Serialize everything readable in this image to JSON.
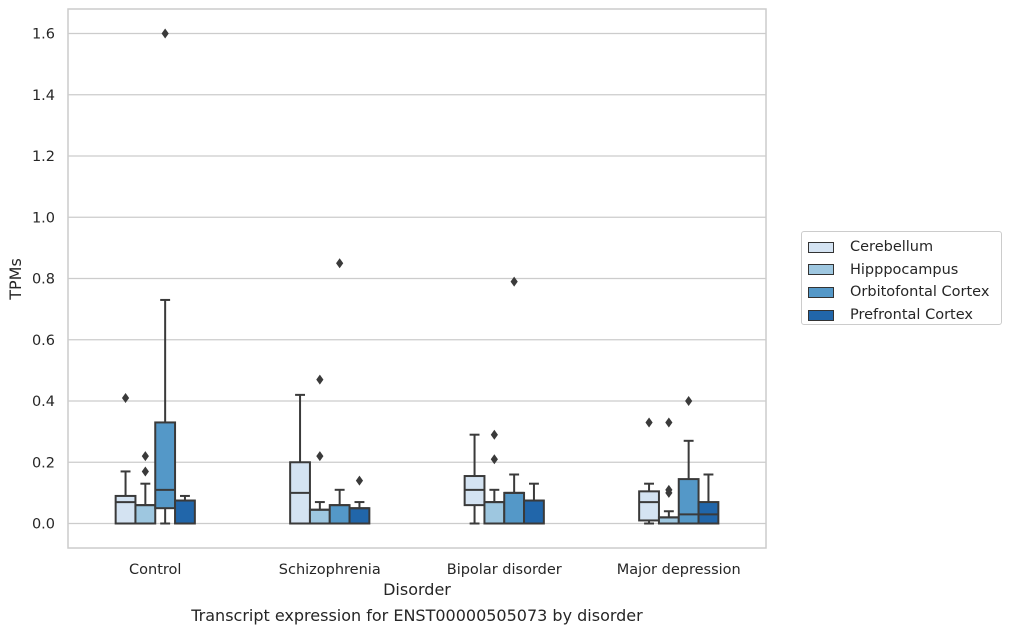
{
  "chart_data": {
    "type": "box",
    "title": "",
    "xlabel": "Disorder",
    "ylabel": "TPMs",
    "caption": "Transcript expression for ENST00000505073 by disorder",
    "ylim": [
      -0.08,
      1.68
    ],
    "yticks": [
      "0.0",
      "0.2",
      "0.4",
      "0.6",
      "0.8",
      "1.0",
      "1.2",
      "1.4",
      "1.6"
    ],
    "ytick_values": [
      0.0,
      0.2,
      0.4,
      0.6,
      0.8,
      1.0,
      1.2,
      1.4,
      1.6
    ],
    "grid": "horizontal",
    "legend_position": "right",
    "categories": [
      "Control",
      "Schizophrenia",
      "Bipolar disorder",
      "Major depression"
    ],
    "series": [
      {
        "name": "Cerebellum",
        "color": "#d4e3f2",
        "boxes": [
          {
            "whisker_low": 0.0,
            "q1": 0.0,
            "median": 0.07,
            "q3": 0.09,
            "whisker_high": 0.17,
            "outliers": [
              0.41
            ]
          },
          {
            "whisker_low": 0.0,
            "q1": 0.0,
            "median": 0.1,
            "q3": 0.2,
            "whisker_high": 0.42,
            "outliers": []
          },
          {
            "whisker_low": 0.0,
            "q1": 0.06,
            "median": 0.11,
            "q3": 0.155,
            "whisker_high": 0.29,
            "outliers": []
          },
          {
            "whisker_low": 0.0,
            "q1": 0.01,
            "median": 0.07,
            "q3": 0.105,
            "whisker_high": 0.13,
            "outliers": [
              0.33
            ]
          }
        ]
      },
      {
        "name": "Hipppocampus",
        "color": "#9ec7e0",
        "boxes": [
          {
            "whisker_low": 0.0,
            "q1": 0.0,
            "median": 0.06,
            "q3": 0.06,
            "whisker_high": 0.13,
            "outliers": [
              0.17,
              0.22
            ]
          },
          {
            "whisker_low": 0.0,
            "q1": 0.0,
            "median": 0.045,
            "q3": 0.045,
            "whisker_high": 0.07,
            "outliers": [
              0.22,
              0.47
            ]
          },
          {
            "whisker_low": 0.0,
            "q1": 0.0,
            "median": 0.07,
            "q3": 0.07,
            "whisker_high": 0.11,
            "outliers": [
              0.21,
              0.29
            ]
          },
          {
            "whisker_low": 0.0,
            "q1": 0.0,
            "median": 0.02,
            "q3": 0.02,
            "whisker_high": 0.04,
            "outliers": [
              0.1,
              0.11,
              0.33
            ]
          }
        ]
      },
      {
        "name": "Orbitofontal Cortex",
        "color": "#5498c8",
        "boxes": [
          {
            "whisker_low": 0.0,
            "q1": 0.05,
            "median": 0.11,
            "q3": 0.33,
            "whisker_high": 0.73,
            "outliers": [
              1.6
            ]
          },
          {
            "whisker_low": 0.0,
            "q1": 0.0,
            "median": 0.06,
            "q3": 0.06,
            "whisker_high": 0.11,
            "outliers": [
              0.85
            ]
          },
          {
            "whisker_low": 0.0,
            "q1": 0.0,
            "median": 0.1,
            "q3": 0.1,
            "whisker_high": 0.16,
            "outliers": [
              0.79
            ]
          },
          {
            "whisker_low": 0.0,
            "q1": 0.0,
            "median": 0.03,
            "q3": 0.145,
            "whisker_high": 0.27,
            "outliers": [
              0.4
            ]
          }
        ]
      },
      {
        "name": "Prefrontal Cortex",
        "color": "#2166aa",
        "boxes": [
          {
            "whisker_low": 0.0,
            "q1": 0.0,
            "median": 0.075,
            "q3": 0.075,
            "whisker_high": 0.09,
            "outliers": []
          },
          {
            "whisker_low": 0.0,
            "q1": 0.0,
            "median": 0.05,
            "q3": 0.05,
            "whisker_high": 0.07,
            "outliers": [
              0.14
            ]
          },
          {
            "whisker_low": 0.0,
            "q1": 0.0,
            "median": 0.075,
            "q3": 0.075,
            "whisker_high": 0.13,
            "outliers": []
          },
          {
            "whisker_low": 0.0,
            "q1": 0.0,
            "median": 0.03,
            "q3": 0.07,
            "whisker_high": 0.16,
            "outliers": []
          }
        ]
      }
    ]
  },
  "colors": {
    "grid": "#cccccc",
    "axes_edge": "#cccccc",
    "box_edge": "#3a3a3a",
    "flier": "#3a3a3a"
  }
}
